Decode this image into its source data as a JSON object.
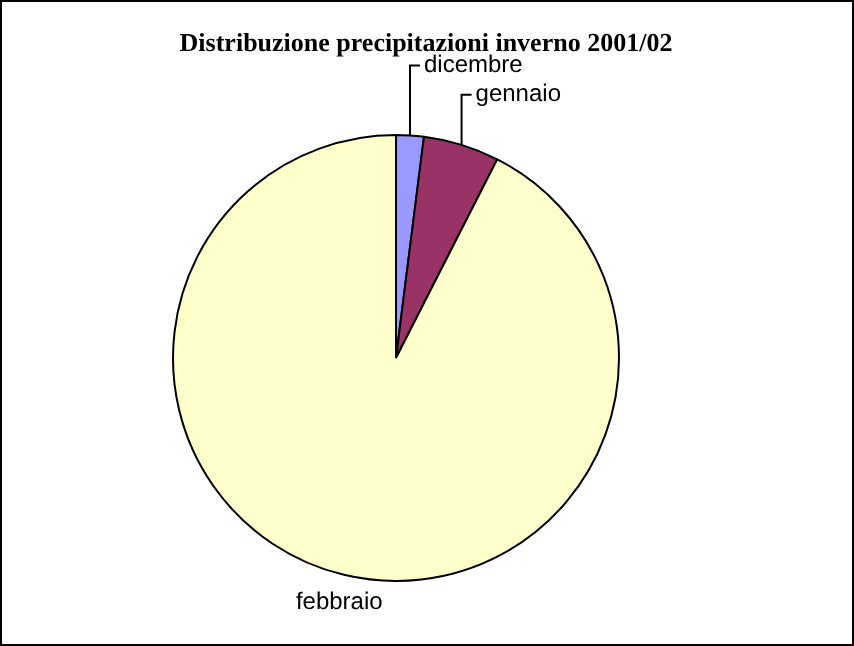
{
  "chart_data": {
    "type": "pie",
    "title": "Distribuzione precipitazioni inverno 2001/02",
    "categories": [
      "dicembre",
      "gennaio",
      "febbraio"
    ],
    "values": [
      2,
      5.5,
      92.5
    ],
    "colors": [
      "#9999ff",
      "#993366",
      "#ffffcc"
    ],
    "legend": false
  }
}
